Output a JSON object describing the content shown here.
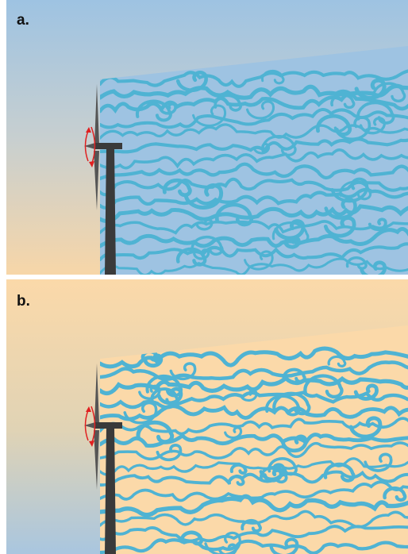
{
  "panels": [
    {
      "label": "a.",
      "sky_gradient": [
        "#9ec3e2",
        "#c7cfd0",
        "#f7d6a8"
      ],
      "wake_fill": "#9ec3e2",
      "swirl_color": "#4fb3d3"
    },
    {
      "label": "b.",
      "sky_gradient": [
        "#fbd9a9",
        "#e0d3b5",
        "#a9c6df"
      ],
      "wake_fill": "#fbd9a9",
      "swirl_color": "#4fb3d3"
    }
  ],
  "turbine": {
    "tower_color": "#3a3a3a",
    "blade_color": "#555555",
    "rotation_arrow_color": "#e02020",
    "icon": "wind-turbine-icon"
  }
}
